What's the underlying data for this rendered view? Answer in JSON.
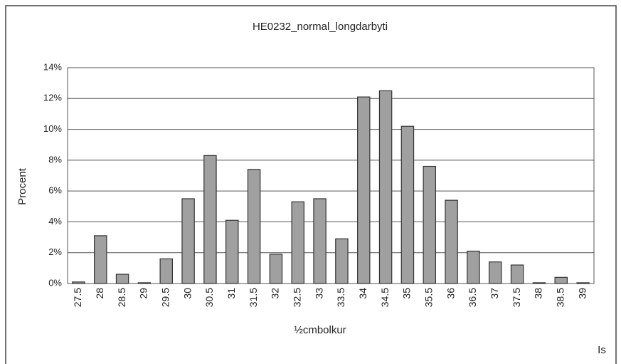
{
  "chart_data": {
    "type": "bar",
    "title": "HE0232_normal_longdarbyti",
    "x_label": "½cmbolkur",
    "y_label": "Procent",
    "annotation": "Is",
    "categories": [
      "27.5",
      "28",
      "28.5",
      "29",
      "29.5",
      "30",
      "30.5",
      "31",
      "31.5",
      "32",
      "32.5",
      "33",
      "33.5",
      "34",
      "34.5",
      "35",
      "35.5",
      "36",
      "36.5",
      "37",
      "37.5",
      "38",
      "38.5",
      "39"
    ],
    "values": [
      0.1,
      3.1,
      0.6,
      0.05,
      1.6,
      5.5,
      8.3,
      4.1,
      7.4,
      1.9,
      5.3,
      5.5,
      2.9,
      12.1,
      12.5,
      10.2,
      7.6,
      5.4,
      2.1,
      1.4,
      1.2,
      0.05,
      0.4,
      0.05
    ],
    "color": "#a0a0a0",
    "ylim": [
      0,
      14
    ],
    "yticks": [
      {
        "value": 0,
        "label": "0%"
      },
      {
        "value": 2,
        "label": "2%"
      },
      {
        "value": 4,
        "label": "4%"
      },
      {
        "value": 6,
        "label": "6%"
      },
      {
        "value": 8,
        "label": "8%"
      },
      {
        "value": 10,
        "label": "10%"
      },
      {
        "value": 12,
        "label": "12%"
      },
      {
        "value": 14,
        "label": "14%"
      }
    ],
    "grid": true
  }
}
